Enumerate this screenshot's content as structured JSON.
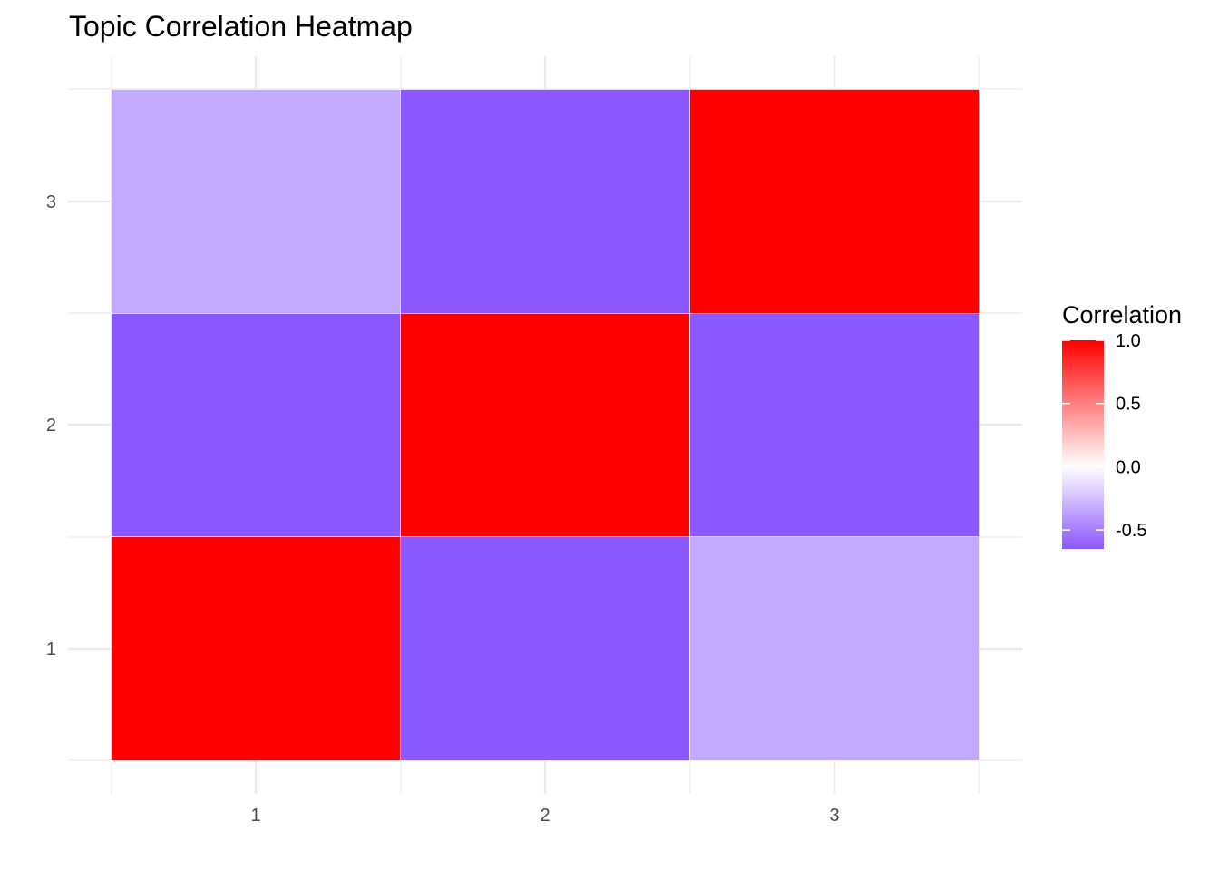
{
  "chart_data": {
    "type": "heatmap",
    "title": "Topic Correlation Heatmap",
    "xlabel": "",
    "ylabel": "",
    "x_categories": [
      "1",
      "2",
      "3"
    ],
    "y_categories": [
      "1",
      "2",
      "3"
    ],
    "cells": [
      {
        "x": "1",
        "y": "1",
        "value": 1.0
      },
      {
        "x": "2",
        "y": "1",
        "value": -0.65
      },
      {
        "x": "3",
        "y": "1",
        "value": -0.33
      },
      {
        "x": "1",
        "y": "2",
        "value": -0.65
      },
      {
        "x": "2",
        "y": "2",
        "value": 1.0
      },
      {
        "x": "3",
        "y": "2",
        "value": -0.65
      },
      {
        "x": "1",
        "y": "3",
        "value": -0.33
      },
      {
        "x": "2",
        "y": "3",
        "value": -0.65
      },
      {
        "x": "3",
        "y": "3",
        "value": 1.0
      }
    ],
    "legend": {
      "title": "Correlation",
      "placement": "right",
      "ticks": [
        1.0,
        0.5,
        0.0,
        -0.5
      ],
      "tick_labels": [
        "1.0",
        "0.5",
        "0.0",
        "-0.5"
      ],
      "range": [
        -0.65,
        1.0
      ]
    },
    "colors": {
      "low": "#8b57ff",
      "mid": "#ffffff",
      "high": "#ff0000"
    },
    "grid": true
  }
}
